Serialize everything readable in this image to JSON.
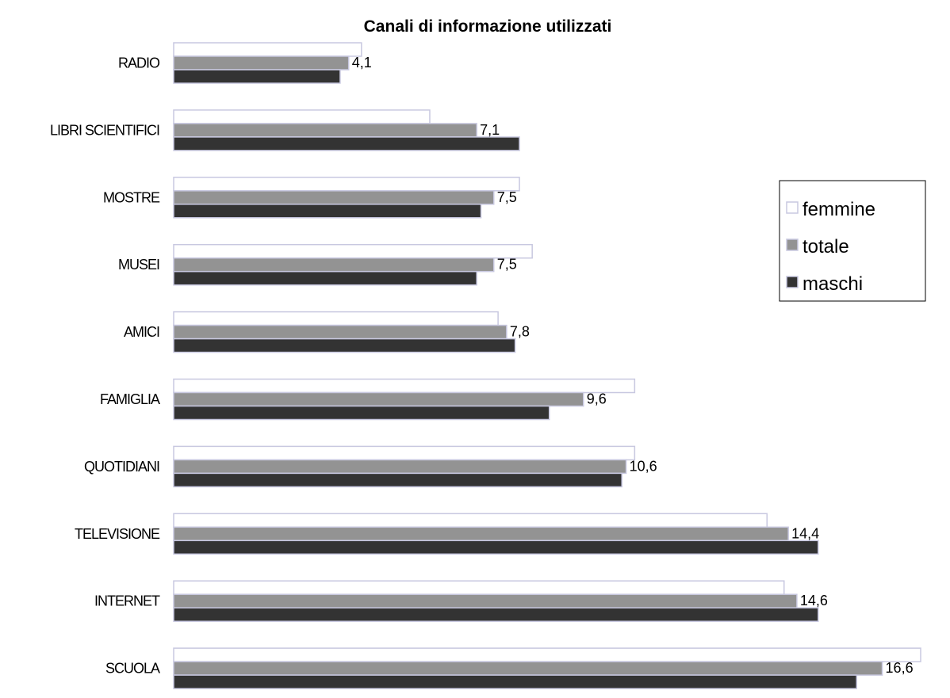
{
  "chart_data": {
    "type": "bar",
    "orientation": "horizontal",
    "title": "Canali di informazione utilizzati",
    "categories": [
      "RADIO",
      "LIBRI SCIENTIFICI",
      "MOSTRE",
      "MUSEI",
      "AMICI",
      "FAMIGLIA",
      "QUOTIDIANI",
      "TELEVISIONE",
      "INTERNET",
      "SCUOLA"
    ],
    "series": [
      {
        "name": "femmine",
        "color": "#ffffff",
        "values": [
          4.4,
          6.0,
          8.1,
          8.4,
          7.6,
          10.8,
          10.8,
          13.9,
          14.3,
          17.5
        ]
      },
      {
        "name": "totale",
        "color": "#939393",
        "values": [
          4.1,
          7.1,
          7.5,
          7.5,
          7.8,
          9.6,
          10.6,
          14.4,
          14.6,
          16.6
        ]
      },
      {
        "name": "maschi",
        "color": "#333333",
        "values": [
          3.9,
          8.1,
          7.2,
          7.1,
          8.0,
          8.8,
          10.5,
          15.1,
          15.1,
          16.0
        ]
      }
    ],
    "data_labels": [
      "4,1",
      "7,1",
      "7,5",
      "7,5",
      "7,8",
      "9,6",
      "10,6",
      "14,4",
      "14,6",
      "16,6"
    ],
    "legend": [
      "femmine",
      "totale",
      "maschi"
    ],
    "legend_position": "right",
    "xlim": [
      0,
      17.5
    ],
    "grid": false,
    "bar_outline_color": "#c8c8e0"
  }
}
